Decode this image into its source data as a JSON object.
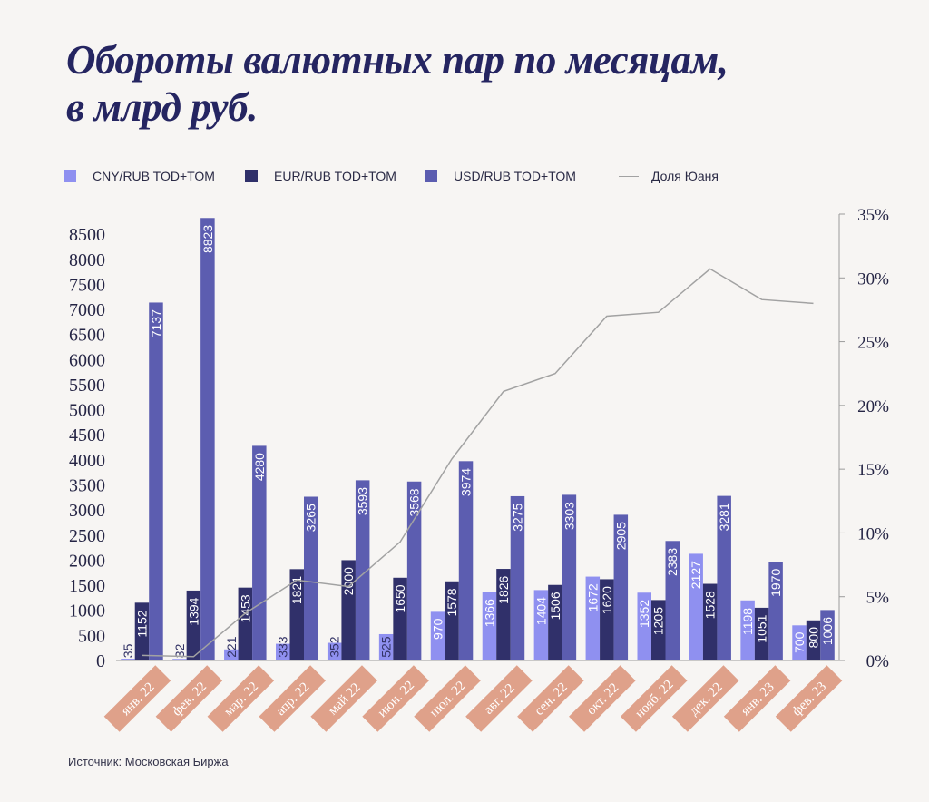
{
  "title_line1": "Обороты валютных пар по месяцам,",
  "title_line2": "в млрд руб.",
  "source": "Источник: Московская Биржа",
  "legend": {
    "cny": "CNY/RUB TOD+TOM",
    "eur": "EUR/RUB TOD+TOM",
    "usd": "USD/RUB TOD+TOM",
    "share": "Доля Юаня"
  },
  "colors": {
    "cny": "#8f90f0",
    "eur": "#30306a",
    "usd": "#5c5db0",
    "share_line": "#a2a2a2",
    "month_label_bg": "#dfa18a",
    "title": "#252561"
  },
  "chart_data": {
    "type": "bar",
    "categories": [
      "янв. 22",
      "фев. 22",
      "мар. 22",
      "апр. 22",
      "май 22",
      "июн. 22",
      "июл. 22",
      "авг. 22",
      "сен. 22",
      "окт. 22",
      "нояб. 22",
      "дек. 22",
      "янв. 23",
      "фев. 23"
    ],
    "series": [
      {
        "name": "CNY/RUB TOD+TOM",
        "values": [
          35,
          32,
          221,
          333,
          352,
          525,
          970,
          1366,
          1404,
          1672,
          1352,
          2127,
          1198,
          700
        ]
      },
      {
        "name": "EUR/RUB TOD+TOM",
        "values": [
          1152,
          1394,
          1453,
          1821,
          2000,
          1650,
          1578,
          1826,
          1506,
          1620,
          1205,
          1528,
          1051,
          800
        ]
      },
      {
        "name": "USD/RUB TOD+TOM",
        "values": [
          7137,
          8823,
          4280,
          3265,
          3593,
          3568,
          3974,
          3275,
          3303,
          2905,
          2383,
          3281,
          1970,
          1006
        ]
      }
    ],
    "line_series": {
      "name": "Доля Юаня",
      "axis": "right",
      "values": [
        0.4,
        0.3,
        3.7,
        6.3,
        5.8,
        9.3,
        15.8,
        21.1,
        22.5,
        27.0,
        27.3,
        30.7,
        28.3,
        28.0
      ]
    },
    "y_ticks": [
      "0",
      "500",
      "1000",
      "1500",
      "2000",
      "2500",
      "3000",
      "3500",
      "4000",
      "4500",
      "5000",
      "5500",
      "6000",
      "6500",
      "7000",
      "7500",
      "8000",
      "8500"
    ],
    "ylim": [
      0,
      8900
    ],
    "y2_ticks": [
      "0%",
      "5%",
      "10%",
      "15%",
      "20%",
      "25%",
      "30%",
      "35%"
    ],
    "y2lim": [
      0,
      35
    ],
    "legend_position": "top",
    "grid": false
  }
}
